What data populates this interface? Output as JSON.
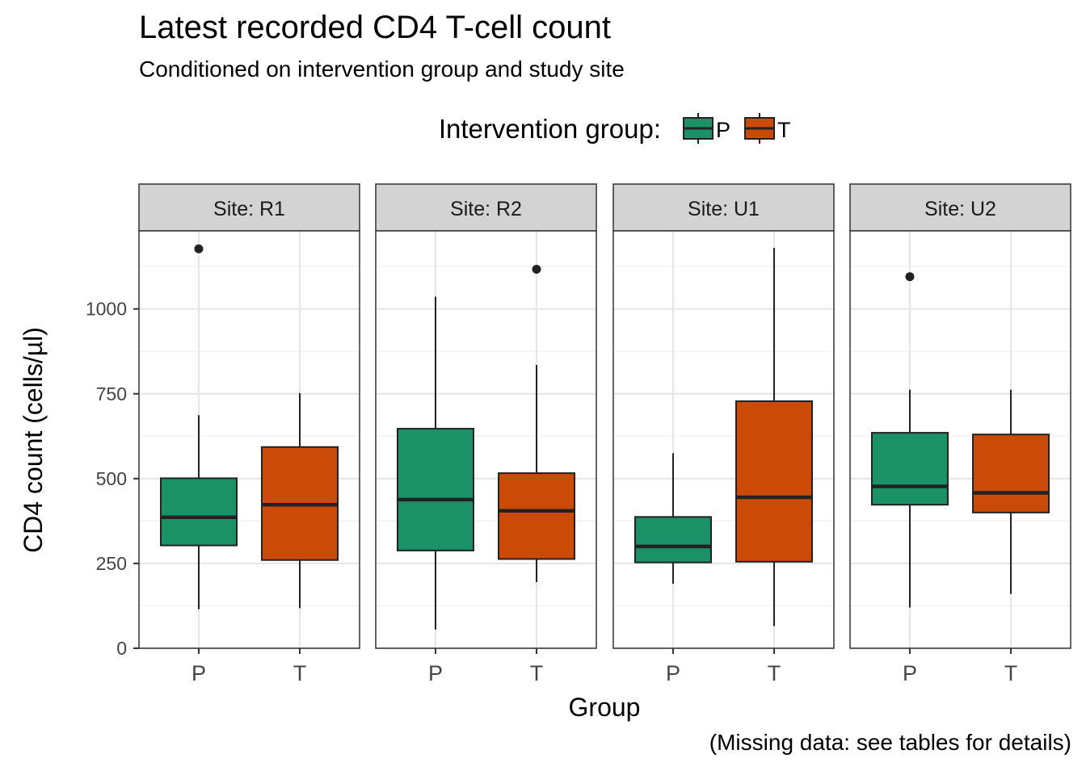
{
  "chart_data": {
    "type": "boxplot",
    "title": "Latest recorded CD4 T-cell count",
    "subtitle": "Conditioned on intervention group and study site",
    "caption": "(Missing data: see tables for details)",
    "xlabel": "Group",
    "ylabel": "CD4 count (cells/µl)",
    "ylim": [
      0,
      1230
    ],
    "yticks": [
      0,
      250,
      500,
      750,
      1000
    ],
    "grid": true,
    "legend": {
      "title": "Intervention group:",
      "position": "top",
      "entries": [
        {
          "name": "P",
          "color": "#1b9168"
        },
        {
          "name": "T",
          "color": "#cc4a08"
        }
      ]
    },
    "categories": [
      "P",
      "T"
    ],
    "panels": [
      {
        "label": "Site: R1",
        "boxes": [
          {
            "group": "P",
            "min": 115,
            "q1": 303,
            "median": 386,
            "q3": 501,
            "max": 687,
            "outliers": [
              1177
            ]
          },
          {
            "group": "T",
            "min": 118,
            "q1": 260,
            "median": 423,
            "q3": 593,
            "max": 752,
            "outliers": []
          }
        ]
      },
      {
        "label": "Site: R2",
        "boxes": [
          {
            "group": "P",
            "min": 55,
            "q1": 288,
            "median": 438,
            "q3": 647,
            "max": 1036,
            "outliers": []
          },
          {
            "group": "T",
            "min": 195,
            "q1": 263,
            "median": 405,
            "q3": 516,
            "max": 835,
            "outliers": [
              1117
            ]
          }
        ]
      },
      {
        "label": "Site: U1",
        "boxes": [
          {
            "group": "P",
            "min": 190,
            "q1": 253,
            "median": 300,
            "q3": 387,
            "max": 575,
            "outliers": []
          },
          {
            "group": "T",
            "min": 65,
            "q1": 255,
            "median": 445,
            "q3": 728,
            "max": 1180,
            "outliers": []
          }
        ]
      },
      {
        "label": "Site: U2",
        "boxes": [
          {
            "group": "P",
            "min": 120,
            "q1": 423,
            "median": 477,
            "q3": 635,
            "max": 762,
            "outliers": [
              1095
            ]
          },
          {
            "group": "T",
            "min": 160,
            "q1": 400,
            "median": 458,
            "q3": 630,
            "max": 762,
            "outliers": []
          }
        ]
      }
    ]
  }
}
